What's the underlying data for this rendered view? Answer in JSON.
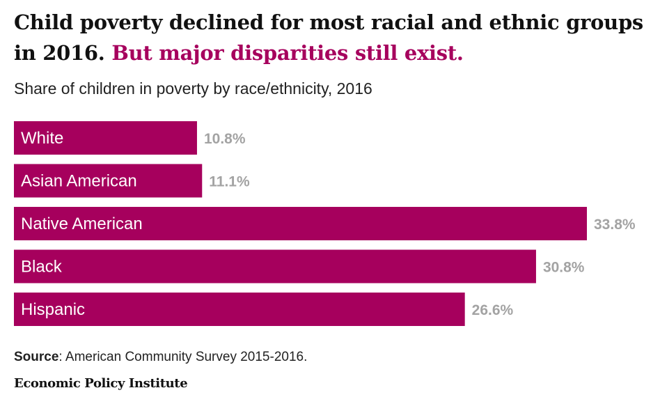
{
  "title": {
    "main": "Child poverty declined for most racial and ethnic groups in 2016.",
    "accent": "But major disparities still exist."
  },
  "subtitle": "Share of children in poverty by race/ethnicity, 2016",
  "source": {
    "label": "Source",
    "text": ": American Community Survey 2015-2016."
  },
  "organization": "Economic Policy Institute",
  "colors": {
    "bar": "#a6005d",
    "value_label": "#a3a3a3",
    "accent": "#a6005d"
  },
  "chart_data": {
    "type": "bar",
    "orientation": "horizontal",
    "title": "Child poverty declined for most racial and ethnic groups in 2016. But major disparities still exist.",
    "subtitle": "Share of children in poverty by race/ethnicity, 2016",
    "categories": [
      "White",
      "Asian American",
      "Native American",
      "Black",
      "Hispanic"
    ],
    "values": [
      10.8,
      11.1,
      33.8,
      30.8,
      26.6
    ],
    "value_labels": [
      "10.8%",
      "11.1%",
      "33.8%",
      "30.8%",
      "26.6%"
    ],
    "xlim": [
      0,
      33.8
    ],
    "grid": false,
    "legend": "none"
  }
}
